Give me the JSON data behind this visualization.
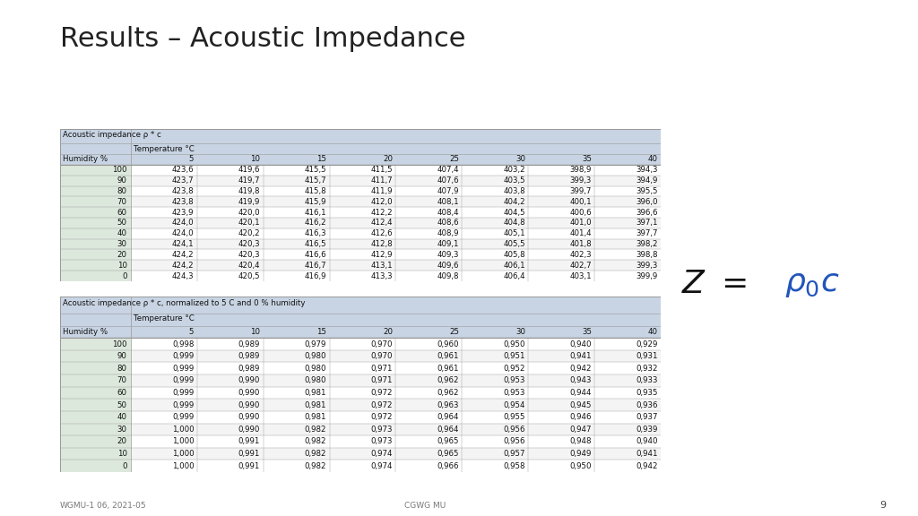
{
  "title": "Results – Acoustic Impedance",
  "title_fontsize": 22,
  "title_color": "#222222",
  "slide_bg": "#ffffff",
  "table1_title": "Acoustic impedance ρ * c",
  "table1_subtitle": "Temperature °C",
  "table1_col_header": [
    "5",
    "10",
    "15",
    "20",
    "25",
    "30",
    "35",
    "40"
  ],
  "table1_row_header": "Humidity %",
  "table1_humidity": [
    100,
    90,
    80,
    70,
    60,
    50,
    40,
    30,
    20,
    10,
    0
  ],
  "table1_data": [
    [
      423.6,
      419.6,
      415.5,
      411.5,
      407.4,
      403.2,
      398.9,
      394.3
    ],
    [
      423.7,
      419.7,
      415.7,
      411.7,
      407.6,
      403.5,
      399.3,
      394.9
    ],
    [
      423.8,
      419.8,
      415.8,
      411.9,
      407.9,
      403.8,
      399.7,
      395.5
    ],
    [
      423.8,
      419.9,
      415.9,
      412.0,
      408.1,
      404.2,
      400.1,
      396.0
    ],
    [
      423.9,
      420.0,
      416.1,
      412.2,
      408.4,
      404.5,
      400.6,
      396.6
    ],
    [
      424.0,
      420.1,
      416.2,
      412.4,
      408.6,
      404.8,
      401.0,
      397.1
    ],
    [
      424.0,
      420.2,
      416.3,
      412.6,
      408.9,
      405.1,
      401.4,
      397.7
    ],
    [
      424.1,
      420.3,
      416.5,
      412.8,
      409.1,
      405.5,
      401.8,
      398.2
    ],
    [
      424.2,
      420.3,
      416.6,
      412.9,
      409.3,
      405.8,
      402.3,
      398.8
    ],
    [
      424.2,
      420.4,
      416.7,
      413.1,
      409.6,
      406.1,
      402.7,
      399.3
    ],
    [
      424.3,
      420.5,
      416.9,
      413.3,
      409.8,
      406.4,
      403.1,
      399.9
    ]
  ],
  "table2_title": "Acoustic impedance ρ * c, normalized to 5 C and 0 % humidity",
  "table2_subtitle": "Temperature °C",
  "table2_col_header": [
    "5",
    "10",
    "15",
    "20",
    "25",
    "30",
    "35",
    "40"
  ],
  "table2_row_header": "Humidity %",
  "table2_humidity": [
    100,
    90,
    80,
    70,
    60,
    50,
    40,
    30,
    20,
    10,
    0
  ],
  "table2_data": [
    [
      0.998,
      0.989,
      0.979,
      0.97,
      0.96,
      0.95,
      0.94,
      0.929
    ],
    [
      0.999,
      0.989,
      0.98,
      0.97,
      0.961,
      0.951,
      0.941,
      0.931
    ],
    [
      0.999,
      0.989,
      0.98,
      0.971,
      0.961,
      0.952,
      0.942,
      0.932
    ],
    [
      0.999,
      0.99,
      0.98,
      0.971,
      0.962,
      0.953,
      0.943,
      0.933
    ],
    [
      0.999,
      0.99,
      0.981,
      0.972,
      0.962,
      0.953,
      0.944,
      0.935
    ],
    [
      0.999,
      0.99,
      0.981,
      0.972,
      0.963,
      0.954,
      0.945,
      0.936
    ],
    [
      0.999,
      0.99,
      0.981,
      0.972,
      0.964,
      0.955,
      0.946,
      0.937
    ],
    [
      1.0,
      0.99,
      0.982,
      0.973,
      0.964,
      0.956,
      0.947,
      0.939
    ],
    [
      1.0,
      0.991,
      0.982,
      0.973,
      0.965,
      0.956,
      0.948,
      0.94
    ],
    [
      1.0,
      0.991,
      0.982,
      0.974,
      0.965,
      0.957,
      0.949,
      0.941
    ],
    [
      1.0,
      0.991,
      0.982,
      0.974,
      0.966,
      0.958,
      0.95,
      0.942
    ]
  ],
  "header_bg": "#c8d4e3",
  "row_bg_white": "#ffffff",
  "row_bg_light": "#f4f4f4",
  "left_col_bg": "#dce8dc",
  "border_color": "#999999",
  "text_color": "#111111",
  "formula_z_color": "#111111",
  "formula_rho_color": "#2255bb",
  "footer_left": "WGMU-1",
  "footer_mid_left": "06, 2021-05",
  "footer_mid_right": "CGWG MU",
  "footer_page": "9"
}
